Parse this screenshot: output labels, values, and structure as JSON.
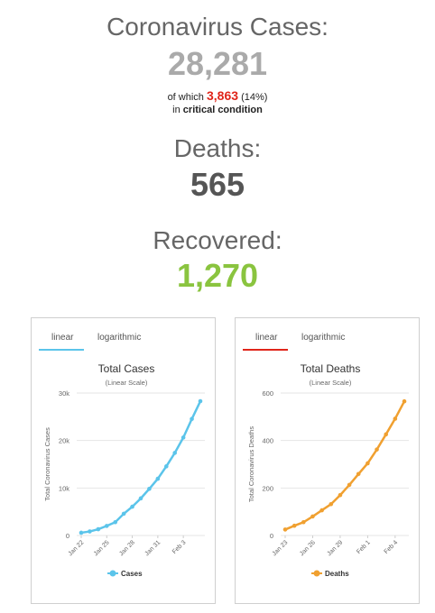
{
  "cases": {
    "title": "Coronavirus Cases:",
    "total": "28,281",
    "critical_prefix": "of which",
    "critical_count": "3,863",
    "critical_pct": "(14%)",
    "critical_in": "in",
    "critical_label": "critical condition"
  },
  "deaths": {
    "title": "Deaths:",
    "total": "565"
  },
  "recovered": {
    "title": "Recovered:",
    "total": "1,270"
  },
  "colors": {
    "cases_series": "#5bc4ea",
    "deaths_series": "#f0a030",
    "critical": "#e0251a",
    "recovered": "#8ac43f",
    "tab_cases_active": "#5bc4ea",
    "tab_deaths_active": "#e0251a"
  },
  "charts": [
    {
      "id": "cases",
      "tabs": [
        "linear",
        "logarithmic"
      ],
      "active_tab": "linear"
    },
    {
      "id": "deaths",
      "tabs": [
        "linear",
        "logarithmic"
      ],
      "active_tab": "linear"
    }
  ],
  "chart_data": [
    {
      "type": "line",
      "title": "Total Cases",
      "subtitle": "(Linear Scale)",
      "ylabel": "Total Coronavirus Cases",
      "xlabel": "",
      "ylim": [
        0,
        30000
      ],
      "yticks": [
        0,
        10000,
        20000,
        30000
      ],
      "ytick_labels": [
        "0",
        "10k",
        "20k",
        "30k"
      ],
      "x": [
        "Jan 22",
        "Jan 23",
        "Jan 24",
        "Jan 25",
        "Jan 26",
        "Jan 27",
        "Jan 28",
        "Jan 29",
        "Jan 30",
        "Jan 31",
        "Feb 1",
        "Feb 2",
        "Feb 3",
        "Feb 4",
        "Feb 5"
      ],
      "xtick_labels": [
        "Jan 22",
        "Jan 25",
        "Jan 28",
        "Jan 31",
        "Feb 3"
      ],
      "series": [
        {
          "name": "Cases",
          "values": [
            580,
            845,
            1317,
            2015,
            2800,
            4581,
            6058,
            7813,
            9823,
            11950,
            14553,
            17391,
            20630,
            24545,
            28281
          ]
        }
      ],
      "legend": "bottom-center",
      "grid": true
    },
    {
      "type": "line",
      "title": "Total Deaths",
      "subtitle": "(Linear Scale)",
      "ylabel": "Total Coronavirus Deaths",
      "xlabel": "",
      "ylim": [
        0,
        600
      ],
      "yticks": [
        0,
        200,
        400,
        600
      ],
      "ytick_labels": [
        "0",
        "200",
        "400",
        "600"
      ],
      "x": [
        "Jan 23",
        "Jan 24",
        "Jan 25",
        "Jan 26",
        "Jan 27",
        "Jan 28",
        "Jan 29",
        "Jan 30",
        "Jan 31",
        "Feb 1",
        "Feb 2",
        "Feb 3",
        "Feb 4",
        "Feb 5"
      ],
      "xtick_labels": [
        "Jan 23",
        "Jan 26",
        "Jan 29",
        "Feb 1",
        "Feb 4"
      ],
      "series": [
        {
          "name": "Deaths",
          "values": [
            25,
            41,
            56,
            80,
            106,
            132,
            170,
            213,
            259,
            304,
            362,
            426,
            492,
            565
          ]
        }
      ],
      "legend": "bottom-center",
      "grid": true
    }
  ]
}
